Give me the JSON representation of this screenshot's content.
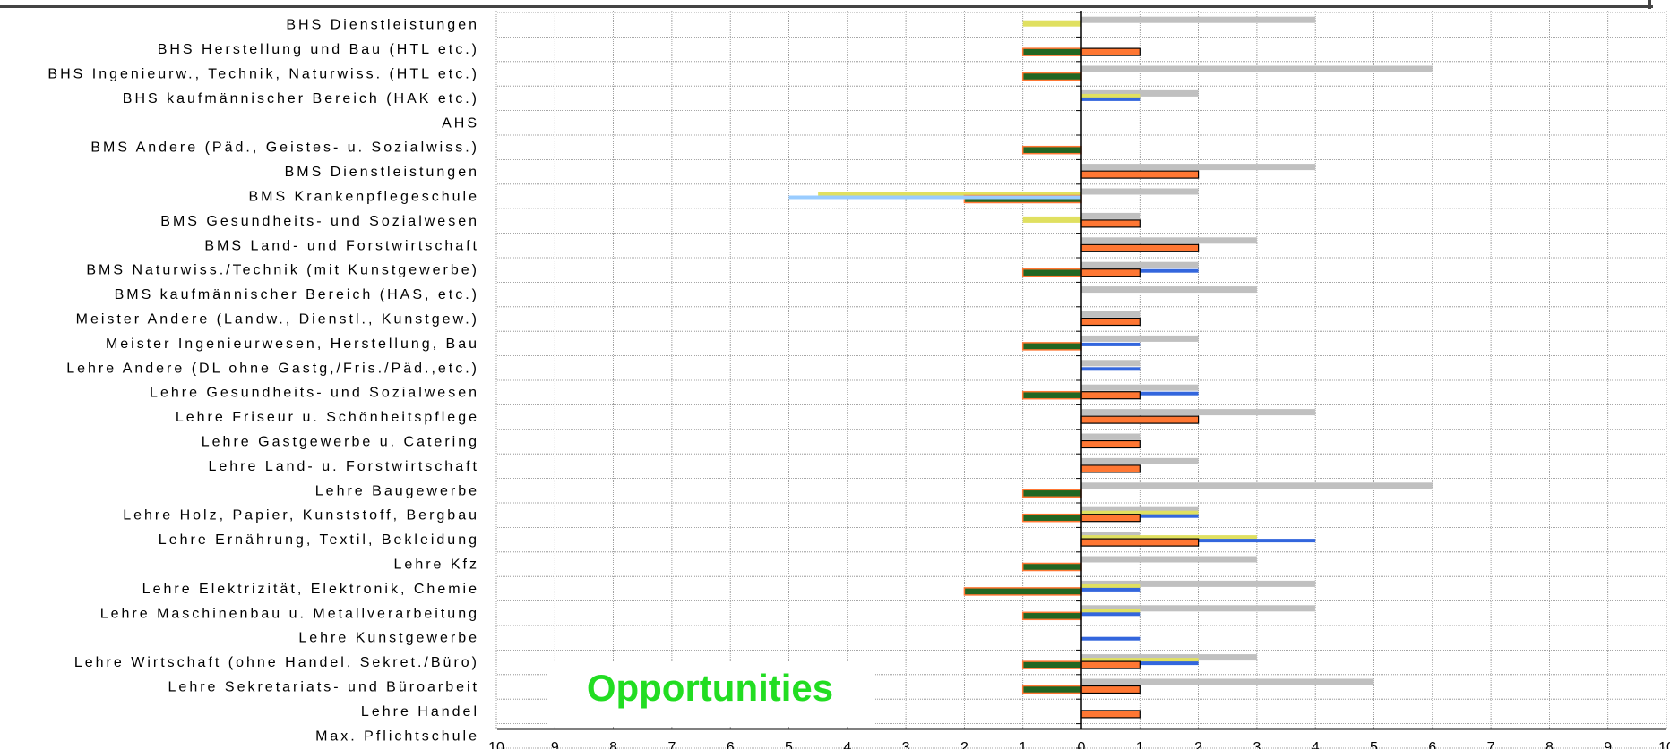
{
  "chart_data": {
    "type": "bar",
    "orientation": "horizontal",
    "title": "",
    "xlabel": "",
    "ylabel": "",
    "xlim": [
      -10,
      10
    ],
    "x_ticks": [
      "10",
      "9",
      "8",
      "7",
      "6",
      "5",
      "4",
      "3",
      "2",
      "1",
      "0",
      "1",
      "2",
      "3",
      "4",
      "5",
      "6",
      "7",
      "8",
      "9",
      "10"
    ],
    "grid": true,
    "annotation": "Opportunities",
    "categories": [
      "BHS Dienstleistungen",
      "BHS Herstellung und Bau (HTL etc.)",
      "BHS Ingenieurw., Technik, Naturwiss. (HTL etc.)",
      "BHS kaufmännischer Bereich (HAK etc.)",
      "AHS",
      "BMS Andere (Päd., Geistes- u. Sozialwiss.)",
      "BMS Dienstleistungen",
      "BMS Krankenpflegeschule",
      "BMS Gesundheits- und Sozialwesen",
      "BMS Land- und Forstwirtschaft",
      "BMS Naturwiss./Technik (mit Kunstgewerbe)",
      "BMS kaufmännischer Bereich (HAS, etc.)",
      "Meister Andere (Landw., Dienstl., Kunstgew.)",
      "Meister Ingenieurwesen, Herstellung, Bau",
      "Lehre Andere (DL ohne Gastg,/Fris./Päd.,etc.)",
      "Lehre Gesundheits- und Sozialwesen",
      "Lehre Friseur u. Schönheitspflege",
      "Lehre Gastgewerbe u. Catering",
      "Lehre Land- u. Forstwirtschaft",
      "Lehre Baugewerbe",
      "Lehre Holz, Papier, Kunststoff, Bergbau",
      "Lehre Ernährung, Textil, Bekleidung",
      "Lehre Kfz",
      "Lehre Elektrizität, Elektronik, Chemie",
      "Lehre Maschinenbau u. Metallverarbeitung",
      "Lehre Kunstgewerbe",
      "Lehre Wirtschaft (ohne Handel, Sekret./Büro)",
      "Lehre Sekretariats- und Büroarbeit",
      "Lehre Handel",
      "Max. Pflichtschule"
    ],
    "series": [
      {
        "color": "#c0c0c0",
        "values": [
          4,
          0,
          6,
          2,
          0,
          0,
          4,
          2,
          1,
          3,
          2,
          3,
          1,
          2,
          1,
          2,
          4,
          1,
          2,
          6,
          2,
          1,
          3,
          4,
          4,
          0,
          3,
          5,
          0,
          0
        ]
      },
      {
        "color": "#e0e060",
        "values": [
          -1,
          0,
          0,
          1,
          0,
          0,
          0,
          -4.5,
          -1,
          0,
          0,
          0,
          0,
          0,
          0,
          0,
          0,
          0,
          0,
          0,
          2,
          3,
          0,
          1,
          1,
          0,
          2,
          0,
          0,
          0
        ]
      },
      {
        "color": "#3366dd",
        "values": [
          0,
          0,
          0,
          1,
          0,
          0,
          0,
          -4,
          0,
          0,
          2,
          0,
          0,
          1,
          1,
          2,
          0,
          0,
          0,
          0,
          2,
          4,
          0,
          1,
          1,
          1,
          2,
          0,
          0,
          0
        ]
      },
      {
        "color": "#ff7733",
        "values": [
          0,
          1,
          0,
          0,
          0,
          0,
          2,
          0,
          1,
          2,
          1,
          0,
          1,
          0,
          0,
          1,
          2,
          1,
          1,
          0,
          1,
          2,
          0,
          0,
          0,
          0,
          1,
          1,
          1,
          0
        ]
      },
      {
        "color": "#226622",
        "values": [
          0,
          -1,
          -1,
          0,
          0,
          -1,
          0,
          -2,
          0,
          0,
          -1,
          0,
          0,
          -1,
          0,
          -1,
          0,
          0,
          0,
          -1,
          -1,
          0,
          -1,
          -2,
          -1,
          0,
          -1,
          -1,
          0,
          0
        ]
      },
      {
        "color": "#99ccff",
        "values": [
          0,
          0,
          0,
          0,
          0,
          0,
          0,
          -5,
          0,
          0,
          0,
          0,
          0,
          0,
          0,
          0,
          0,
          0,
          0,
          0,
          0,
          0,
          0,
          0,
          0,
          0,
          0,
          0,
          0,
          0
        ]
      }
    ]
  }
}
